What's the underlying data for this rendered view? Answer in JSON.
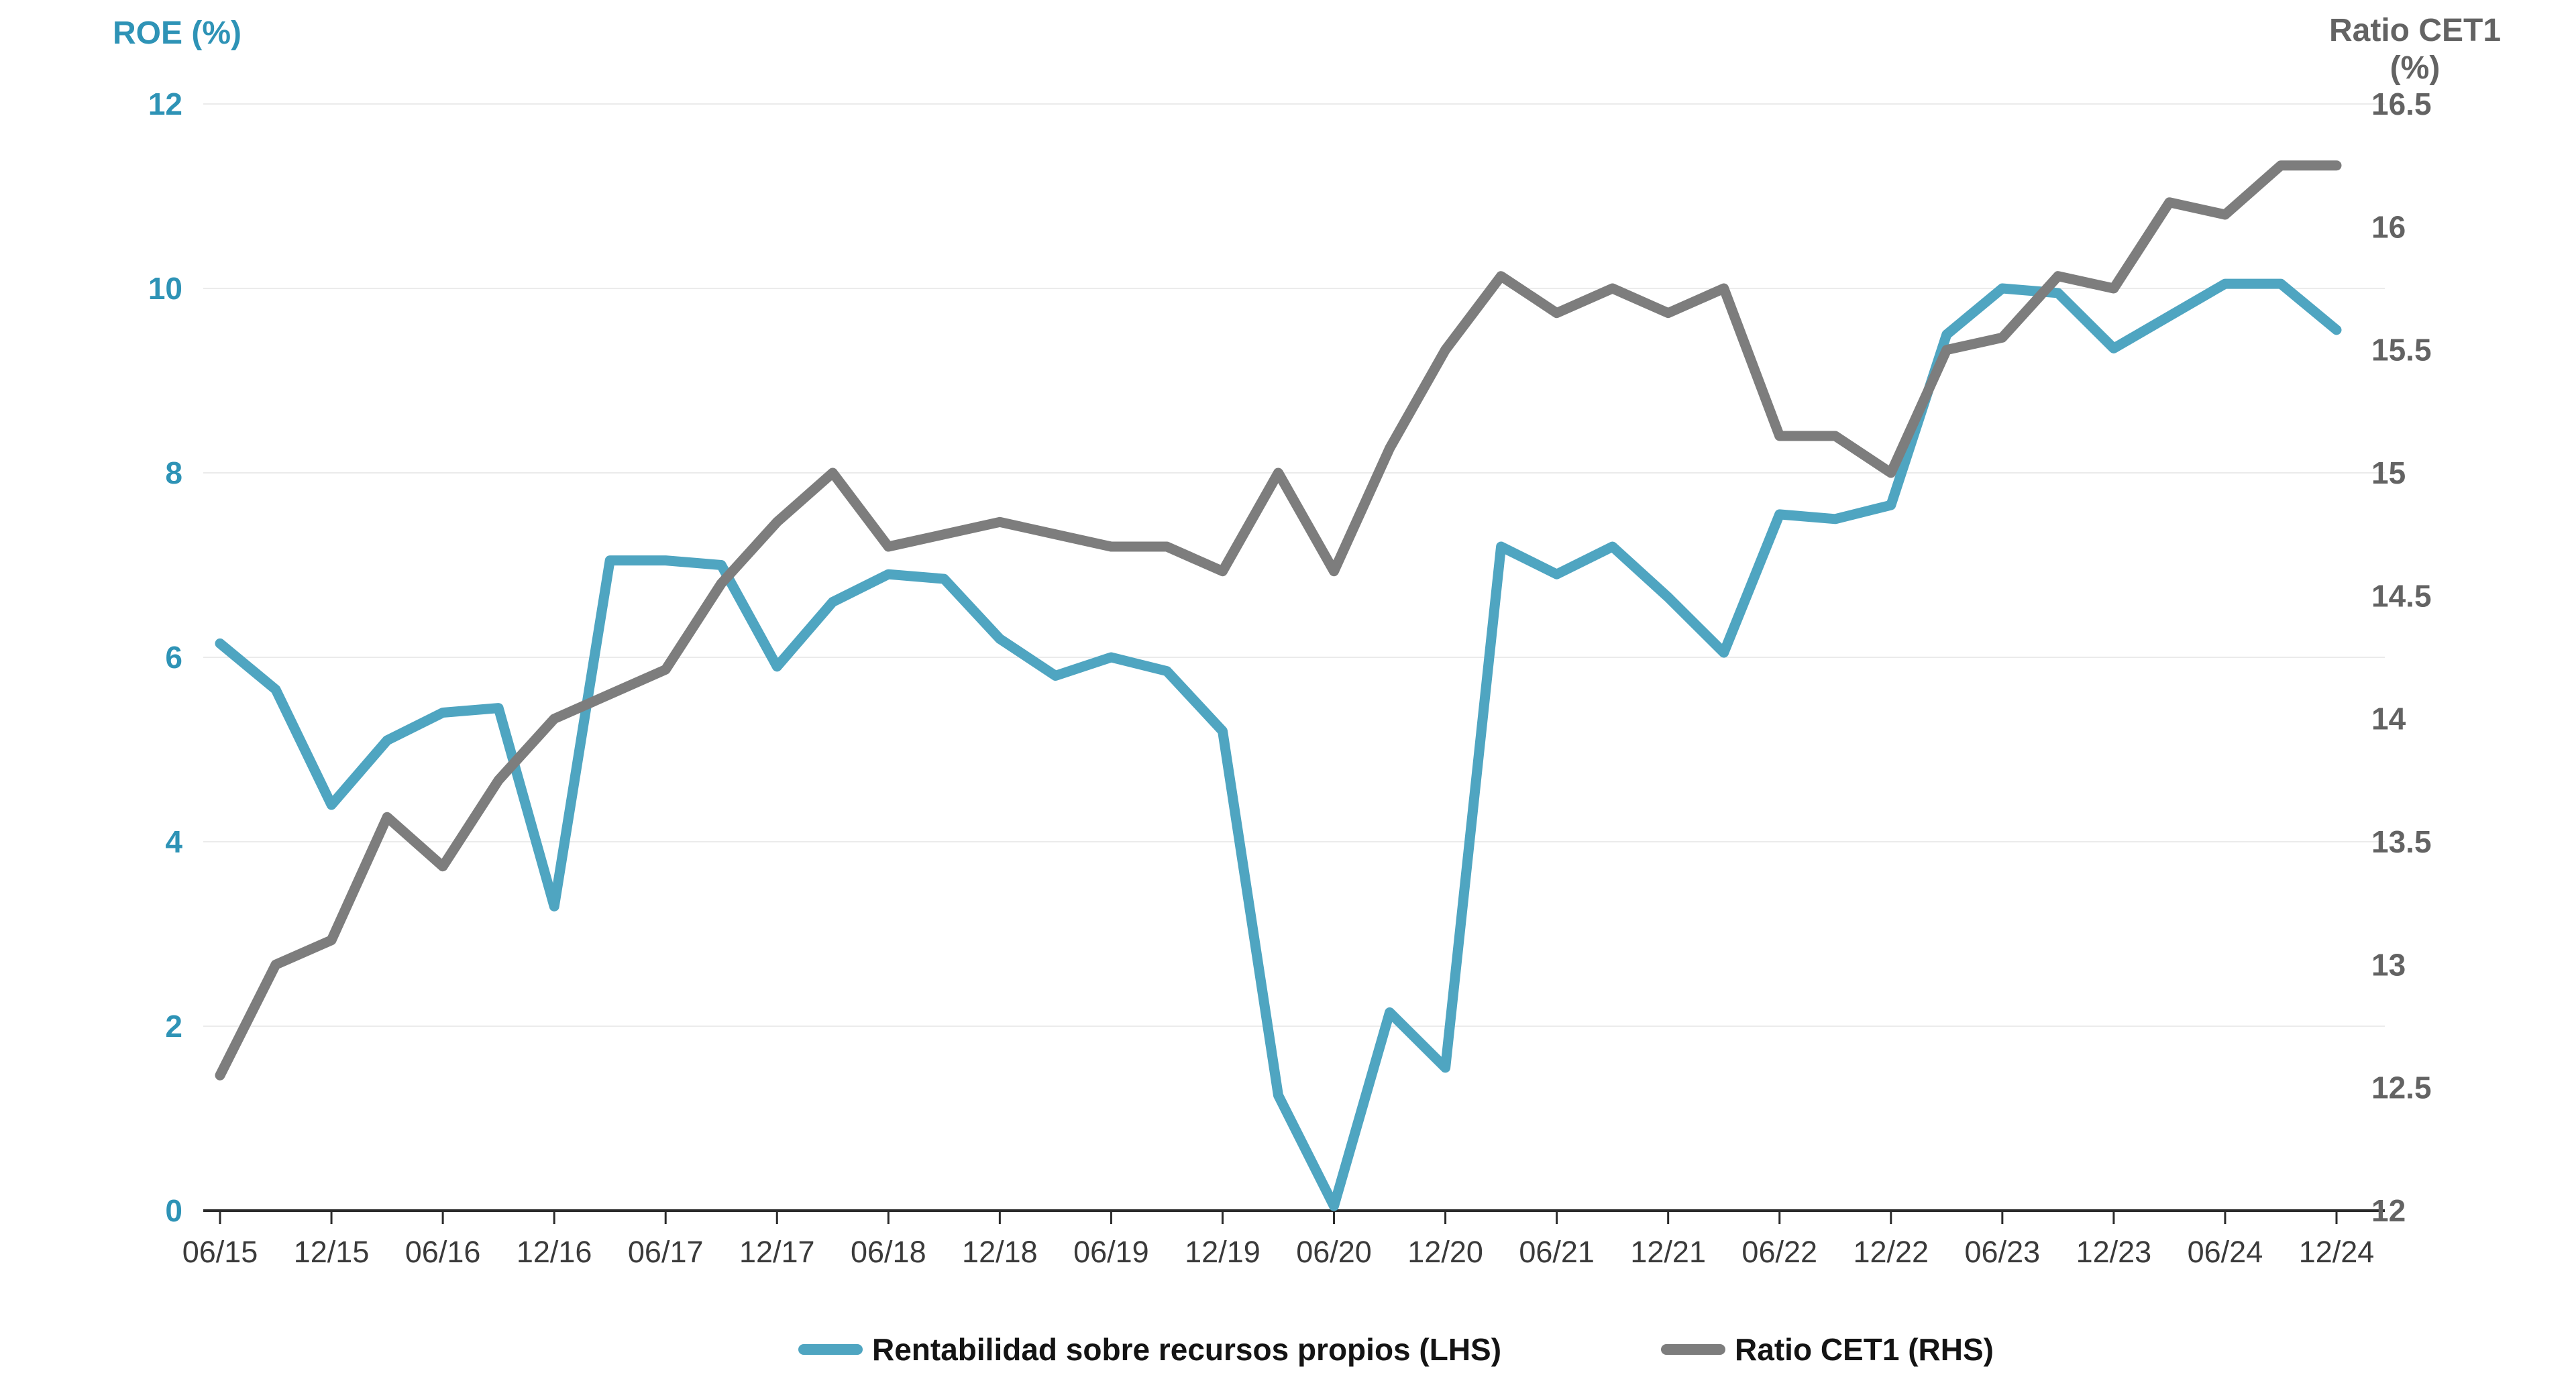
{
  "left_axis": {
    "title": "ROE (%)",
    "tick_labels": [
      "0",
      "2",
      "4",
      "6",
      "8",
      "10",
      "12"
    ],
    "tick_values": [
      0,
      2,
      4,
      6,
      8,
      10,
      12
    ],
    "text_color": "#2e93b6"
  },
  "right_axis": {
    "title_line1": "Ratio CET1",
    "title_line2": "(%)",
    "tick_labels": [
      "12",
      "12.5",
      "13",
      "13.5",
      "14",
      "14.5",
      "15",
      "15.5",
      "16",
      "16.5"
    ],
    "tick_values": [
      12,
      12.5,
      13,
      13.5,
      14,
      14.5,
      15,
      15.5,
      16,
      16.5
    ],
    "text_color": "#636363"
  },
  "legend": {
    "roe_label": "Rentabilidad sobre recursos propios (LHS)",
    "cet1_label": "Ratio CET1 (RHS)"
  },
  "chart_data": {
    "type": "line",
    "title": "",
    "xlabel": "",
    "ylabel_left": "ROE (%)",
    "ylabel_right": "Ratio CET1 (%)",
    "left_ylim": [
      0,
      12
    ],
    "right_ylim": [
      12,
      16.5
    ],
    "grid": "horizontal, at left-axis ticks every 2",
    "legend_position": "bottom",
    "x_axis_tick_labels": [
      "06/15",
      "12/15",
      "06/16",
      "12/16",
      "06/17",
      "12/17",
      "06/18",
      "12/18",
      "06/19",
      "12/19",
      "06/20",
      "12/20",
      "06/21",
      "12/21",
      "06/22",
      "12/22",
      "06/23",
      "12/23",
      "06/24",
      "12/24"
    ],
    "x": [
      "06/15",
      "09/15",
      "12/15",
      "03/16",
      "06/16",
      "09/16",
      "12/16",
      "03/17",
      "06/17",
      "09/17",
      "12/17",
      "03/18",
      "06/18",
      "09/18",
      "12/18",
      "03/19",
      "06/19",
      "09/19",
      "12/19",
      "03/20",
      "06/20",
      "09/20",
      "12/20",
      "03/21",
      "06/21",
      "09/21",
      "12/21",
      "03/22",
      "06/22",
      "09/22",
      "12/22",
      "03/23",
      "06/23",
      "09/23",
      "12/23",
      "03/24",
      "06/24",
      "09/24",
      "12/24"
    ],
    "series": [
      {
        "name": "Rentabilidad sobre recursos propios (LHS)",
        "axis": "left",
        "color": "#4fa5c1",
        "values": [
          6.15,
          5.65,
          4.4,
          5.1,
          5.4,
          5.45,
          3.3,
          7.05,
          7.05,
          7.0,
          5.9,
          6.6,
          6.9,
          6.85,
          6.2,
          5.8,
          6.0,
          5.85,
          5.2,
          1.25,
          0.05,
          2.15,
          1.55,
          7.2,
          6.9,
          7.2,
          6.65,
          6.05,
          7.55,
          7.5,
          7.65,
          9.5,
          10.0,
          9.95,
          9.35,
          9.7,
          10.05,
          10.05,
          9.55
        ]
      },
      {
        "name": "Ratio CET1 (RHS)",
        "axis": "right",
        "color": "#7d7d7d",
        "values": [
          12.55,
          13.0,
          13.1,
          13.6,
          13.4,
          13.75,
          14.0,
          14.1,
          14.2,
          14.55,
          14.8,
          15.0,
          14.7,
          14.75,
          14.8,
          14.75,
          14.7,
          14.7,
          14.6,
          15.0,
          14.6,
          15.1,
          15.5,
          15.8,
          15.65,
          15.75,
          15.65,
          15.75,
          15.15,
          15.15,
          15.0,
          15.5,
          15.55,
          15.8,
          15.75,
          16.1,
          16.05,
          16.25,
          16.25
        ]
      }
    ]
  }
}
